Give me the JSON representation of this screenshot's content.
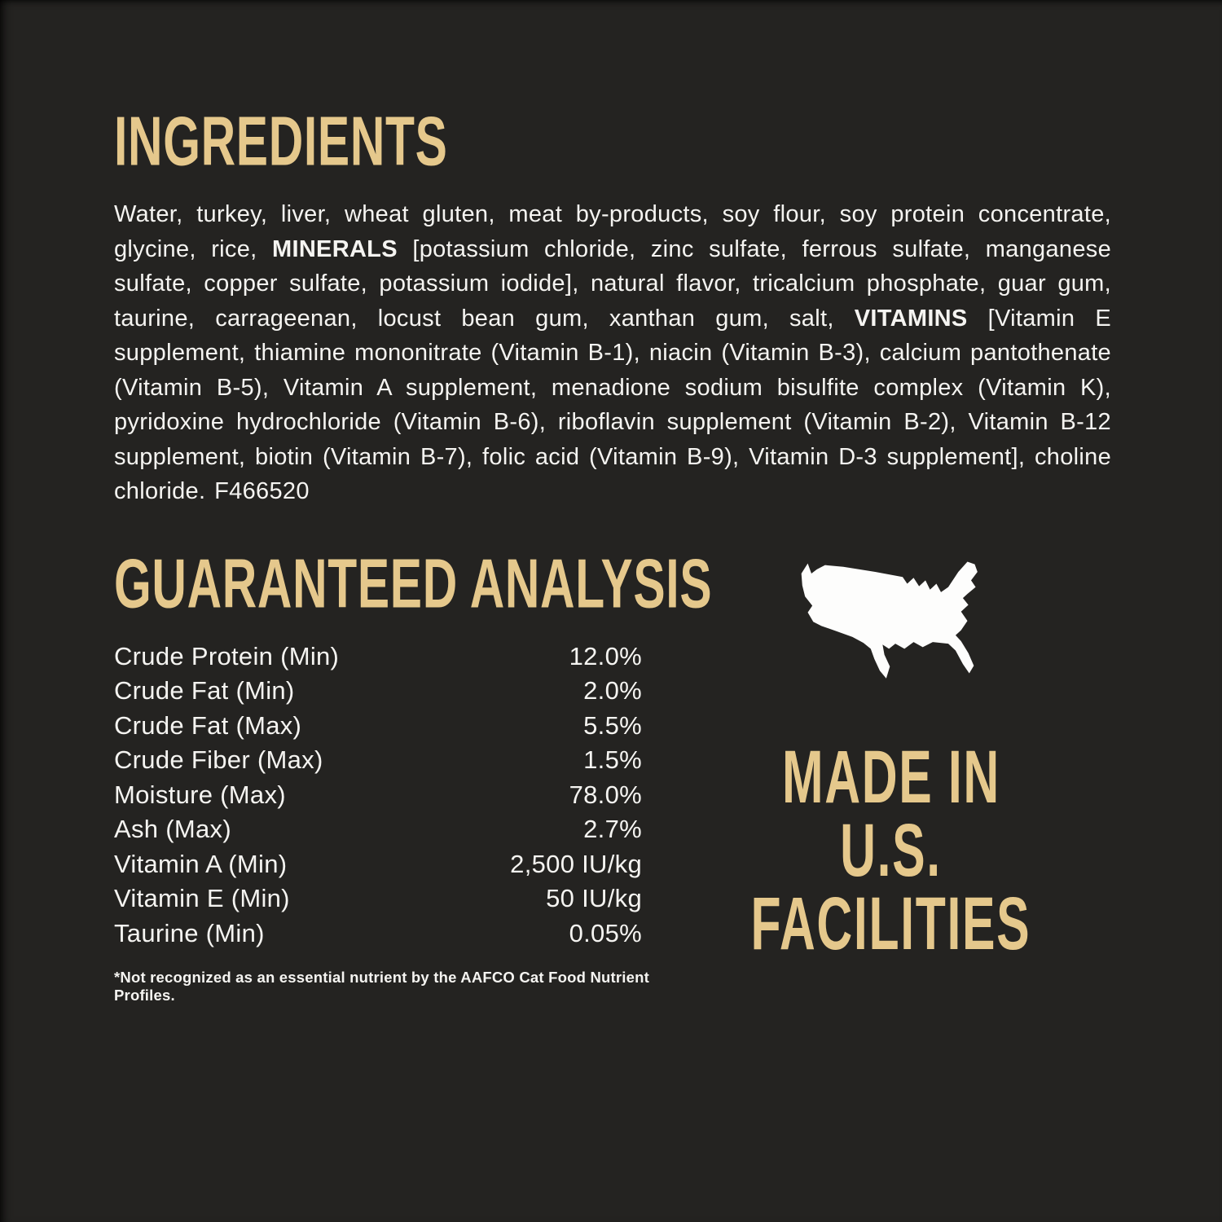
{
  "colors": {
    "background": "#242321",
    "gold_accent": "#e5c88c",
    "body_text": "#f5f4f1",
    "map_fill": "#fdfdfc"
  },
  "ingredients": {
    "heading": "INGREDIENTS",
    "segments": [
      {
        "text": "Water, turkey, liver, wheat gluten, meat by-products, soy flour, soy protein concentrate, glycine, rice, ",
        "bold": false
      },
      {
        "text": "MINERALS",
        "bold": true
      },
      {
        "text": " [potassium chloride, zinc sulfate, ferrous sulfate, manganese sulfate, copper sulfate, potassium iodide], natural flavor, tricalcium phosphate, guar gum, taurine, carrageenan, locust bean gum, xanthan gum, salt, ",
        "bold": false
      },
      {
        "text": "VITAMINS",
        "bold": true
      },
      {
        "text": " [Vitamin E supplement, thiamine mononitrate (Vitamin B-1), niacin (Vitamin B-3), calcium pantothenate (Vitamin B-5), Vitamin A supplement, menadione sodium bisulfite complex (Vitamin K), pyridoxine hydrochloride (Vitamin B-6), riboflavin supplement (Vitamin B-2), Vitamin B-12 supplement, biotin (Vitamin B-7), folic acid (Vitamin B-9), Vitamin D-3 supplement], choline chloride. F466520",
        "bold": false
      }
    ]
  },
  "guaranteed_analysis": {
    "heading": "GUARANTEED ANALYSIS",
    "rows": [
      {
        "label": "Crude Protein (Min)",
        "value": "12.0%"
      },
      {
        "label": "Crude Fat (Min)",
        "value": "2.0%"
      },
      {
        "label": "Crude Fat (Max)",
        "value": "5.5%"
      },
      {
        "label": "Crude Fiber (Max)",
        "value": "1.5%"
      },
      {
        "label": "Moisture (Max)",
        "value": "78.0%"
      },
      {
        "label": "Ash (Max)",
        "value": "2.7%"
      },
      {
        "label": "Vitamin A (Min)",
        "value": "2,500 IU/kg"
      },
      {
        "label": "Vitamin E (Min)",
        "value": "50 IU/kg"
      },
      {
        "label": "Taurine (Min)",
        "value": "0.05%"
      }
    ],
    "footnote": "*Not recognized as an essential nutrient by the AAFCO Cat Food Nutrient Profiles."
  },
  "made_in": {
    "icon": "usa-map-icon",
    "lines": [
      "MADE IN",
      "U.S.",
      "FACILITIES"
    ]
  }
}
